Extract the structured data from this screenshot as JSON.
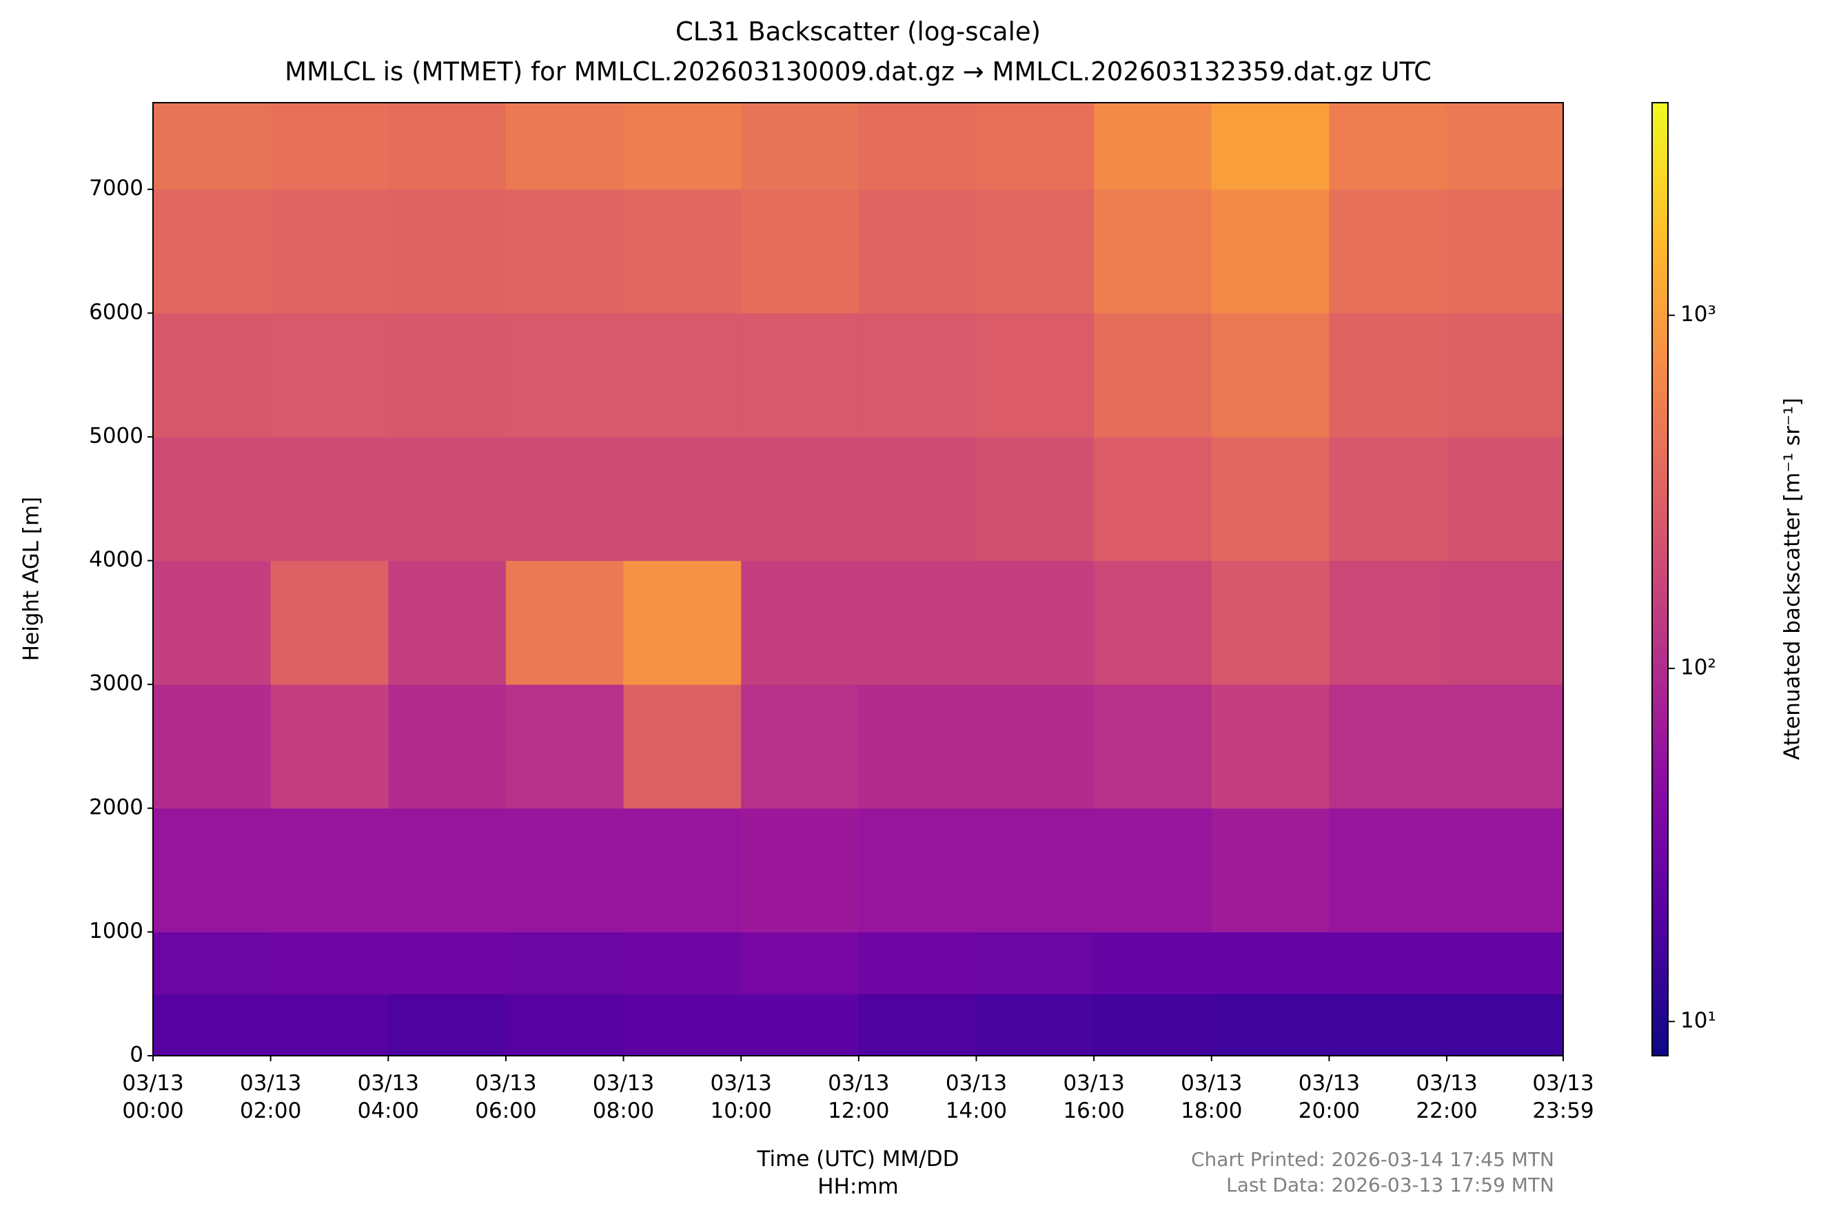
{
  "chart_data": {
    "type": "heatmap",
    "title": "CL31 Backscatter (log-scale)",
    "subtitle": "MMLCL is (MTMET) for MMLCL.202603130009.dat.gz → MMLCL.202603132359.dat.gz UTC",
    "xlabel": "Time (UTC) MM/DD\nHH:mm",
    "ylabel": "Height AGL [m]",
    "colorbar_label": "Attenuated backscatter [m⁻¹ sr⁻¹]",
    "notes": [
      "Chart Printed: 2026-03-14 17:45 MTN",
      "Last Data: 2026-03-13 17:59 MTN"
    ],
    "colormap": "plasma",
    "log_color": true,
    "x_edges": [
      0,
      2,
      4,
      6,
      8,
      10,
      12,
      14,
      16,
      18,
      20,
      22,
      23.98
    ],
    "y_edges": [
      0,
      500,
      1000,
      2000,
      3000,
      4000,
      5000,
      6000,
      7000,
      7700
    ],
    "values": [
      [
        20,
        20,
        18,
        20,
        22,
        22,
        18,
        17,
        16,
        15,
        15,
        15
      ],
      [
        28,
        30,
        30,
        28,
        30,
        35,
        30,
        28,
        26,
        25,
        26,
        26
      ],
      [
        60,
        60,
        60,
        60,
        60,
        65,
        60,
        60,
        60,
        70,
        60,
        60
      ],
      [
        100,
        150,
        100,
        110,
        300,
        110,
        100,
        100,
        110,
        150,
        110,
        110
      ],
      [
        150,
        300,
        150,
        500,
        800,
        150,
        150,
        150,
        180,
        250,
        180,
        170
      ],
      [
        200,
        200,
        200,
        200,
        200,
        200,
        200,
        220,
        280,
        350,
        250,
        230
      ],
      [
        250,
        260,
        250,
        260,
        260,
        260,
        260,
        280,
        400,
        500,
        320,
        300
      ],
      [
        350,
        330,
        320,
        330,
        350,
        400,
        330,
        350,
        550,
        700,
        420,
        400
      ],
      [
        450,
        420,
        400,
        500,
        550,
        450,
        400,
        420,
        700,
        1000,
        550,
        500
      ]
    ],
    "xlim": [
      0,
      23.98
    ],
    "xticks": [
      {
        "value": 0,
        "label": "03/13\n00:00"
      },
      {
        "value": 2,
        "label": "03/13\n02:00"
      },
      {
        "value": 4,
        "label": "03/13\n04:00"
      },
      {
        "value": 6,
        "label": "03/13\n06:00"
      },
      {
        "value": 8,
        "label": "03/13\n08:00"
      },
      {
        "value": 10,
        "label": "03/13\n10:00"
      },
      {
        "value": 12,
        "label": "03/13\n12:00"
      },
      {
        "value": 14,
        "label": "03/13\n14:00"
      },
      {
        "value": 16,
        "label": "03/13\n16:00"
      },
      {
        "value": 18,
        "label": "03/13\n18:00"
      },
      {
        "value": 20,
        "label": "03/13\n20:00"
      },
      {
        "value": 22,
        "label": "03/13\n22:00"
      },
      {
        "value": 23.98,
        "label": "03/13\n23:59"
      }
    ],
    "ylim": [
      0,
      7700
    ],
    "yticks": [
      0,
      1000,
      2000,
      3000,
      4000,
      5000,
      6000,
      7000
    ],
    "clim": [
      8,
      4000
    ],
    "cticks": [
      {
        "value": 10,
        "label": "10¹"
      },
      {
        "value": 100,
        "label": "10²"
      },
      {
        "value": 1000,
        "label": "10³"
      }
    ]
  }
}
